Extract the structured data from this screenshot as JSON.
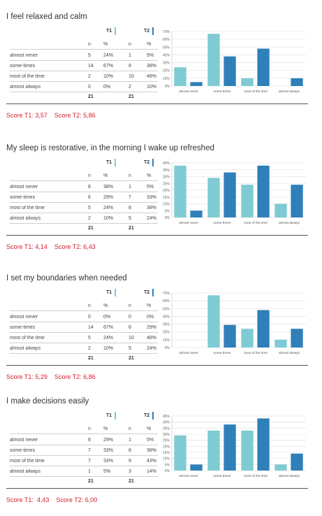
{
  "colors": {
    "t1": "#7ecbd3",
    "t2": "#2f7fb8",
    "score": "#d2202f"
  },
  "table_headers": {
    "t1": "T1",
    "t2": "T2",
    "n": "n",
    "pct": "%"
  },
  "chart_data": [
    {
      "type": "bar",
      "title": "I feel relaxed and calm",
      "categories": [
        "almost never",
        "some-times",
        "most of the time",
        "almost always"
      ],
      "y_ticks": [
        "70%",
        "60%",
        "50%",
        "40%",
        "30%",
        "20%",
        "10%",
        "0%"
      ],
      "ylim": [
        0,
        70
      ],
      "series": [
        {
          "name": "T1",
          "values": [
            24,
            67,
            10,
            0
          ]
        },
        {
          "name": "T2",
          "values": [
            5,
            38,
            48,
            10
          ]
        }
      ],
      "table_rows": [
        {
          "label": "almost never",
          "n1": "5",
          "p1": "24%",
          "n2": "1",
          "p2": "5%"
        },
        {
          "label": "some-times",
          "n1": "14",
          "p1": "67%",
          "n2": "8",
          "p2": "38%"
        },
        {
          "label": "most of the time",
          "n1": "2",
          "p1": "10%",
          "n2": "10",
          "p2": "48%"
        },
        {
          "label": "almost always",
          "n1": "0",
          "p1": "0%",
          "n2": "2",
          "p2": "10%"
        }
      ],
      "totals": {
        "n1": "21",
        "n2": "21"
      },
      "score": "Score T1: 3,57    Score T2: 5,86"
    },
    {
      "type": "bar",
      "title": "My sleep is restorative, in the morning I wake up refreshed",
      "categories": [
        "almost never",
        "some-times",
        "most of the time",
        "almost always"
      ],
      "y_ticks": [
        "40%",
        "35%",
        "30%",
        "25%",
        "20%",
        "15%",
        "10%",
        "5%",
        "0%"
      ],
      "ylim": [
        0,
        40
      ],
      "series": [
        {
          "name": "T1",
          "values": [
            38,
            29,
            24,
            10
          ]
        },
        {
          "name": "T2",
          "values": [
            5,
            33,
            38,
            24
          ]
        }
      ],
      "table_rows": [
        {
          "label": "almost never",
          "n1": "8",
          "p1": "38%",
          "n2": "1",
          "p2": "5%"
        },
        {
          "label": "some-times",
          "n1": "6",
          "p1": "29%",
          "n2": "7",
          "p2": "33%"
        },
        {
          "label": "most of the time",
          "n1": "5",
          "p1": "24%",
          "n2": "8",
          "p2": "38%"
        },
        {
          "label": "almost always",
          "n1": "2",
          "p1": "10%",
          "n2": "5",
          "p2": "24%"
        }
      ],
      "totals": {
        "n1": "21",
        "n2": "21"
      },
      "score": "Score T1: 4,14    Score T2: 6,43"
    },
    {
      "type": "bar",
      "title": "I set my boundaries when needed",
      "categories": [
        "almost never",
        "some-times",
        "most of the time",
        "almost always"
      ],
      "y_ticks": [
        "70%",
        "60%",
        "50%",
        "40%",
        "30%",
        "20%",
        "10%",
        "0%"
      ],
      "ylim": [
        0,
        70
      ],
      "series": [
        {
          "name": "T1",
          "values": [
            0,
            67,
            24,
            10
          ]
        },
        {
          "name": "T2",
          "values": [
            0,
            29,
            48,
            24
          ]
        }
      ],
      "table_rows": [
        {
          "label": "almost never",
          "n1": "0",
          "p1": "0%",
          "n2": "0",
          "p2": "0%"
        },
        {
          "label": "some-times",
          "n1": "14",
          "p1": "67%",
          "n2": "6",
          "p2": "29%"
        },
        {
          "label": "most of the time",
          "n1": "5",
          "p1": "24%",
          "n2": "10",
          "p2": "48%"
        },
        {
          "label": "almost always",
          "n1": "2",
          "p1": "10%",
          "n2": "5",
          "p2": "24%"
        }
      ],
      "totals": {
        "n1": "21",
        "n2": "21"
      },
      "score": "Score T1: 5,29    Score T2: 6,86"
    },
    {
      "type": "bar",
      "title": "I make decisions easily",
      "categories": [
        "almost never",
        "some-times",
        "most of the time",
        "almost always"
      ],
      "y_ticks": [
        "45%",
        "40%",
        "35%",
        "30%",
        "25%",
        "20%",
        "15%",
        "10%",
        "5%",
        "0%"
      ],
      "ylim": [
        0,
        45
      ],
      "series": [
        {
          "name": "T1",
          "values": [
            29,
            33,
            33,
            5
          ]
        },
        {
          "name": "T2",
          "values": [
            5,
            38,
            43,
            14
          ]
        }
      ],
      "table_rows": [
        {
          "label": "almost never",
          "n1": "6",
          "p1": "29%",
          "n2": "1",
          "p2": "5%"
        },
        {
          "label": "some-times",
          "n1": "7",
          "p1": "33%",
          "n2": "8",
          "p2": "38%"
        },
        {
          "label": "most of the time",
          "n1": "7",
          "p1": "33%",
          "n2": "9",
          "p2": "43%"
        },
        {
          "label": "almost always",
          "n1": "1",
          "p1": "5%",
          "n2": "3",
          "p2": "14%"
        }
      ],
      "totals": {
        "n1": "21",
        "n2": "21"
      },
      "score": "Score T1:  4,43    Score T2: 6,00"
    }
  ]
}
